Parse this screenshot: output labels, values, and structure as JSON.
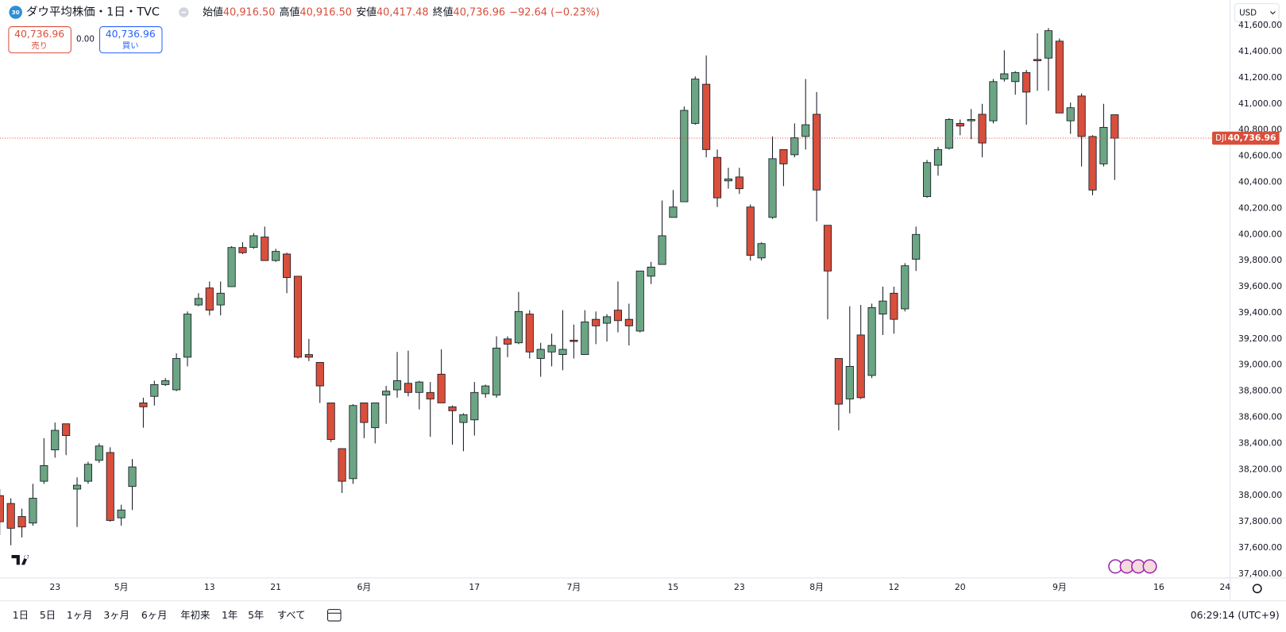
{
  "header": {
    "badge": "30",
    "title": "ダウ平均株価・1日・TVC",
    "ohlc": [
      {
        "label": "始値",
        "value": "40,916.50"
      },
      {
        "label": "高値",
        "value": "40,916.50"
      },
      {
        "label": "安値",
        "value": "40,417.48"
      },
      {
        "label": "終値",
        "value": "40,736.96"
      }
    ],
    "change": "−92.64 (−0.23%)",
    "sell": {
      "price": "40,736.96",
      "label": "売り"
    },
    "spread": "0.00",
    "buy": {
      "price": "40,736.96",
      "label": "買い"
    },
    "currency": "USD",
    "symbol": "DJI"
  },
  "toolbar": {
    "ranges": [
      "1日",
      "5日",
      "1ヶ月",
      "3ヶ月",
      "6ヶ月",
      "年初来",
      "1年",
      "5年",
      "すべて"
    ],
    "clock": "06:29:14 (UTC+9)"
  },
  "chart_data": {
    "type": "candlestick",
    "up_color": "#6ba583",
    "down_color": "#d84f3c",
    "grid": false,
    "categories": [
      null,
      null,
      null,
      null,
      null,
      "23",
      null,
      null,
      null,
      null,
      null,
      "5月",
      null,
      null,
      null,
      null,
      null,
      null,
      null,
      "13",
      null,
      null,
      null,
      null,
      null,
      "21",
      null,
      null,
      null,
      null,
      null,
      null,
      null,
      "6月",
      null,
      null,
      null,
      null,
      null,
      null,
      null,
      null,
      null,
      "17",
      null,
      null,
      null,
      null,
      null,
      null,
      null,
      null,
      "7月",
      null,
      null,
      null,
      null,
      null,
      null,
      null,
      null,
      "15",
      null,
      null,
      null,
      null,
      null,
      "23",
      null,
      null,
      null,
      null,
      null,
      null,
      "8月",
      null,
      null,
      null,
      null,
      null,
      null,
      "12",
      null,
      null,
      null,
      null,
      null,
      "20",
      null,
      null,
      null,
      null,
      null,
      null,
      null,
      null,
      "9月",
      null,
      null,
      null,
      null,
      null,
      null,
      null,
      null,
      "16",
      null,
      null,
      null,
      null,
      null,
      "24"
    ],
    "open": [
      38000,
      37940,
      37840,
      37790,
      38110,
      38350,
      38550,
      38050,
      38110,
      38270,
      38330,
      37830,
      38070,
      38710,
      38760,
      38850,
      38810,
      39060,
      39460,
      39590,
      39460,
      39600,
      39900,
      39900,
      39980,
      39800,
      39850,
      39680,
      39080,
      39020,
      38710,
      38360,
      38130,
      38710,
      38520,
      38770,
      38810,
      38860,
      38790,
      38790,
      38930,
      38680,
      38560,
      38580,
      38780,
      38770,
      39200,
      39170,
      39390,
      39050,
      39100,
      39080,
      39190,
      39080,
      39350,
      39320,
      39420,
      39350,
      39260,
      39680,
      39770,
      40130,
      40250,
      40850,
      41150,
      40590,
      40410,
      40440,
      40210,
      39820,
      40130,
      40650,
      40610,
      40750,
      40920,
      40070,
      39050,
      38740,
      39230,
      38920,
      39390,
      39550,
      39430,
      39810,
      40290,
      40530,
      40660,
      40850,
      40870,
      40920,
      40870,
      41190,
      41170,
      41240,
      41340,
      41350,
      41480,
      40870,
      41060,
      40750,
      40540,
      40916.5,
      null,
      null,
      null,
      null,
      null,
      null,
      null,
      null,
      null,
      null
    ],
    "high": [
      38050,
      37980,
      37900,
      38090,
      38440,
      38560,
      38550,
      38140,
      38260,
      38400,
      38370,
      37930,
      38280,
      38750,
      38880,
      38900,
      39090,
      39410,
      39550,
      39640,
      39640,
      39910,
      39940,
      40010,
      40060,
      39890,
      39860,
      39680,
      39200,
      39020,
      38710,
      38360,
      38700,
      38710,
      38710,
      38840,
      39100,
      39110,
      38880,
      38870,
      39120,
      38690,
      38630,
      38870,
      38850,
      39220,
      39220,
      39560,
      39420,
      39170,
      39240,
      39420,
      39310,
      39420,
      39410,
      39390,
      39640,
      39470,
      39720,
      39790,
      40260,
      40340,
      40980,
      41210,
      41370,
      40650,
      40510,
      40510,
      40230,
      39940,
      40750,
      40650,
      40850,
      41190,
      41090,
      40070,
      39050,
      39450,
      39460,
      39470,
      39600,
      39600,
      39780,
      40060,
      40570,
      40670,
      40890,
      40880,
      40960,
      41000,
      41190,
      41410,
      41250,
      41260,
      41540,
      41580,
      41500,
      41010,
      41080,
      40760,
      41000,
      40916.5,
      null,
      null,
      null,
      null,
      null,
      null,
      null,
      null,
      null,
      null
    ],
    "low": [
      37700,
      37620,
      37680,
      37770,
      38090,
      38290,
      38310,
      37760,
      38090,
      38250,
      37800,
      37770,
      37890,
      38520,
      38690,
      38840,
      38800,
      38990,
      39450,
      39380,
      39380,
      39600,
      39850,
      39890,
      39800,
      39790,
      39550,
      39050,
      39030,
      38710,
      38410,
      38020,
      38090,
      38440,
      38400,
      38550,
      38750,
      38760,
      38660,
      38450,
      38710,
      38390,
      38340,
      38460,
      38750,
      38750,
      39060,
      39160,
      39050,
      38910,
      38990,
      38960,
      39050,
      39080,
      39160,
      39180,
      39250,
      39150,
      39250,
      39620,
      39770,
      40130,
      40250,
      40840,
      40590,
      40210,
      40350,
      40310,
      39800,
      39800,
      40120,
      40370,
      40590,
      40650,
      40100,
      39350,
      38500,
      38630,
      38740,
      38900,
      39230,
      39240,
      39410,
      39720,
      40280,
      40450,
      40650,
      40760,
      40730,
      40590,
      40850,
      41170,
      41070,
      40840,
      41100,
      41100,
      40930,
      40770,
      40520,
      40300,
      40520,
      40417.48,
      null,
      null,
      null,
      null,
      null,
      null,
      null,
      null,
      null,
      null
    ],
    "close": [
      37800,
      37750,
      37760,
      37980,
      38230,
      38500,
      38460,
      38080,
      38240,
      38380,
      37810,
      37890,
      38220,
      38680,
      38850,
      38880,
      39050,
      39390,
      39510,
      39420,
      39550,
      39900,
      39860,
      39990,
      39800,
      39870,
      39670,
      39060,
      39060,
      38840,
      38430,
      38110,
      38690,
      38560,
      38710,
      38800,
      38880,
      38790,
      38870,
      38740,
      38710,
      38650,
      38620,
      38790,
      38840,
      39130,
      39160,
      39410,
      39100,
      39120,
      39150,
      39120,
      39180,
      39330,
      39300,
      39370,
      39340,
      39300,
      39720,
      39750,
      39990,
      40210,
      40950,
      41190,
      40650,
      40280,
      40425,
      40350,
      39840,
      39930,
      40580,
      40540,
      40740,
      40840,
      40340,
      39720,
      38700,
      38990,
      38750,
      39440,
      39490,
      39350,
      39760,
      40000,
      40550,
      40650,
      40880,
      40830,
      40880,
      40700,
      41170,
      41230,
      41240,
      41090,
      41330,
      41560,
      40930,
      40970,
      40750,
      40340,
      40820,
      40736.96,
      null,
      null,
      null,
      null,
      null,
      null,
      null,
      null,
      null,
      null
    ],
    "ylim": [
      37370,
      41795
    ],
    "yticks": [
      {
        "value": 37400,
        "label": "37,400.00"
      },
      {
        "value": 37600,
        "label": "37,600.00"
      },
      {
        "value": 37800,
        "label": "37,800.00"
      },
      {
        "value": 38000,
        "label": "38,000.00"
      },
      {
        "value": 38200,
        "label": "38,200.00"
      },
      {
        "value": 38400,
        "label": "38,400.00"
      },
      {
        "value": 38600,
        "label": "38,600.00"
      },
      {
        "value": 38800,
        "label": "38,800.00"
      },
      {
        "value": 39000,
        "label": "39,000.00"
      },
      {
        "value": 39200,
        "label": "39,200.00"
      },
      {
        "value": 39400,
        "label": "39,400.00"
      },
      {
        "value": 39600,
        "label": "39,600.00"
      },
      {
        "value": 39800,
        "label": "39,800.00"
      },
      {
        "value": 40000,
        "label": "40,000.00"
      },
      {
        "value": 40200,
        "label": "40,200.00"
      },
      {
        "value": 40400,
        "label": "40,400.00"
      },
      {
        "value": 40600,
        "label": "40,600.00"
      },
      {
        "value": 40800,
        "label": "40,800.00"
      },
      {
        "value": 41000,
        "label": "41,000.00"
      },
      {
        "value": 41200,
        "label": "41,200.00"
      },
      {
        "value": 41400,
        "label": "41,400.00"
      },
      {
        "value": 41600,
        "label": "41,600.00"
      }
    ]
  }
}
